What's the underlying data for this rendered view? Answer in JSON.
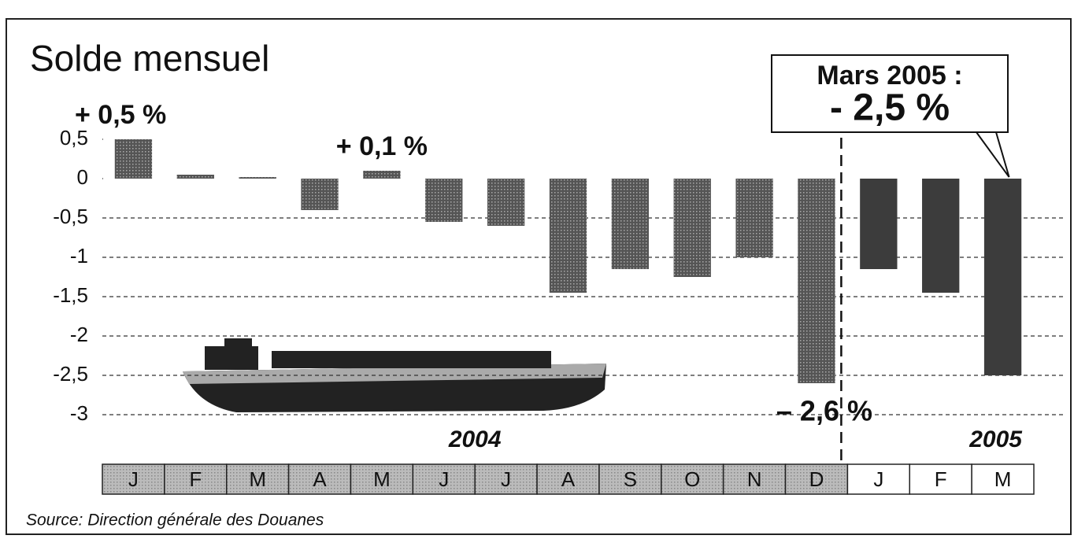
{
  "chart_data": {
    "type": "bar",
    "title": "Solde mensuel",
    "groups": [
      {
        "label": "2004",
        "categories": [
          "J",
          "F",
          "M",
          "A",
          "M",
          "J",
          "J",
          "A",
          "S",
          "O",
          "N",
          "D"
        ]
      },
      {
        "label": "2005",
        "categories": [
          "J",
          "F",
          "M"
        ]
      }
    ],
    "values": [
      0.5,
      0.05,
      0.02,
      -0.4,
      0.1,
      -0.55,
      -0.6,
      -1.45,
      -1.15,
      -1.25,
      -1.0,
      -2.6,
      -1.15,
      -1.45,
      -2.5
    ],
    "value_labels": [
      "+ 0,5 %",
      null,
      null,
      null,
      "+ 0,1 %",
      null,
      null,
      null,
      null,
      null,
      null,
      "– 2,6 %",
      null,
      null,
      "- 2,5 %"
    ],
    "callout": "Mars 2005 :",
    "color": "#3c3c3c",
    "ylim": [
      -3,
      0.5
    ],
    "yticks": [
      {
        "value": 0.5,
        "label": "0,5"
      },
      0,
      {
        "value": -0.5,
        "label": "-0,5"
      },
      -1,
      {
        "value": -1.5,
        "label": "-1,5"
      },
      -2,
      {
        "value": -2.5,
        "label": "-2,5"
      },
      -3
    ],
    "grid": true,
    "source": "Source: Direction générale des Douanes"
  }
}
